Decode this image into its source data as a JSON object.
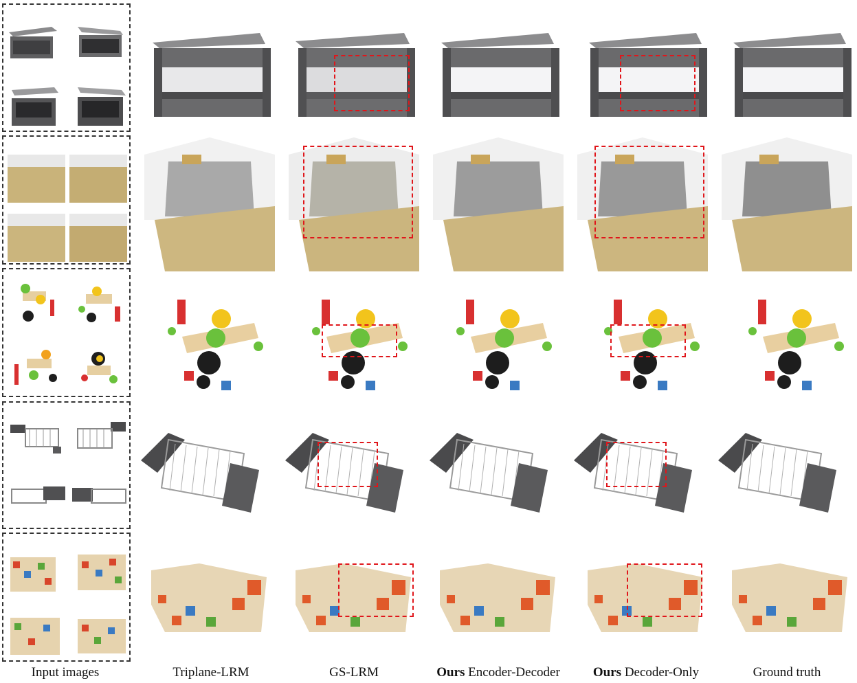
{
  "captions": {
    "input": "Input images",
    "triplane": "Triplane-LRM",
    "gs": "GS-LRM",
    "encdec_bold": "Ours",
    "encdec_rest": " Encoder-Decoder",
    "deconly_bold": "Ours",
    "deconly_rest": " Decoder-Only",
    "gt": "Ground truth"
  },
  "rows": [
    {
      "name": "bench",
      "palette": {
        "main": "#6e6e70",
        "light": "#d9d9db",
        "accent": "#9a9a9c"
      }
    },
    {
      "name": "basket",
      "palette": {
        "main": "#c8b27a",
        "light": "#f0f0f0",
        "accent": "#8a8a8a"
      }
    },
    {
      "name": "toy",
      "palette": {
        "main": "#e8cfa0",
        "light": "#7ec646",
        "accent": "#1a1a1a"
      }
    },
    {
      "name": "rack",
      "palette": {
        "main": "#5a5a5c",
        "light": "#d8d8d8",
        "accent": "#8c8c8c"
      }
    },
    {
      "name": "blocks",
      "palette": {
        "main": "#e7d6b5",
        "light": "#e05a2a",
        "accent": "#3a7ac2"
      }
    }
  ]
}
